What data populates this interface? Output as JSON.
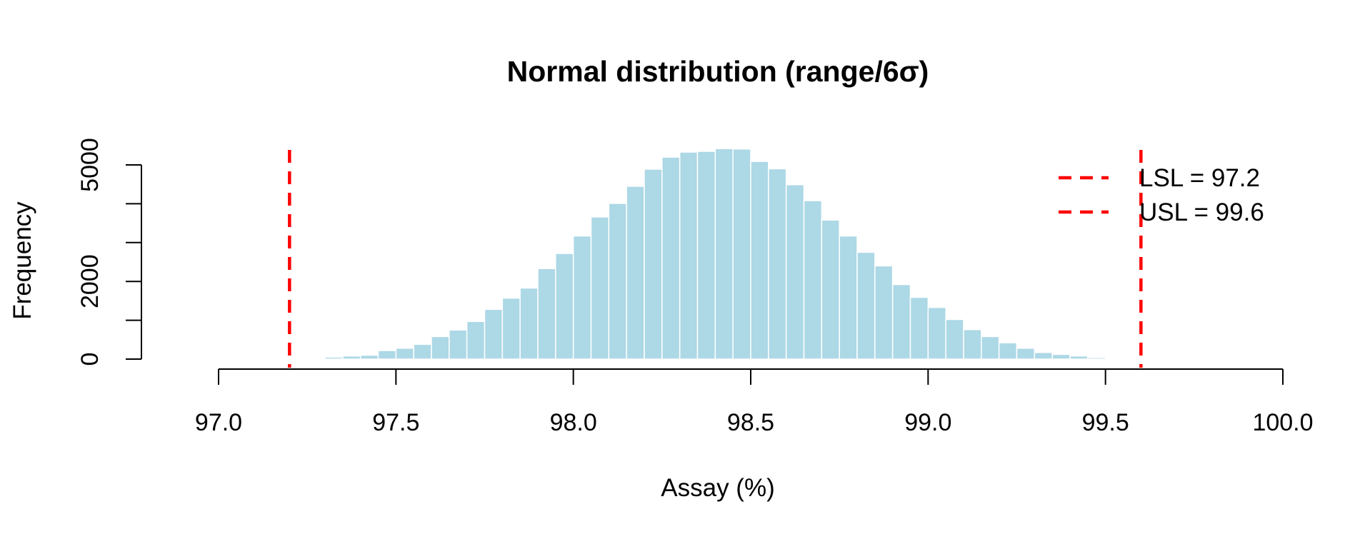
{
  "chart_data": {
    "type": "bar",
    "title": "Normal distribution (range/6σ)",
    "xlabel": "Assay (%)",
    "ylabel": "Frequency",
    "xlim": [
      97.0,
      100.0
    ],
    "ylim": [
      0,
      5500
    ],
    "x_ticks": [
      "97.0",
      "97.5",
      "98.0",
      "98.5",
      "99.0",
      "99.5",
      "100.0"
    ],
    "x_tick_values": [
      97.0,
      97.5,
      98.0,
      98.5,
      99.0,
      99.5,
      100.0
    ],
    "y_ticks": [
      "0",
      "",
      "2000",
      "",
      "",
      "5000"
    ],
    "y_tick_values": [
      0,
      1000,
      2000,
      3000,
      4000,
      5000
    ],
    "bin_width": 0.05,
    "bin_starts": [
      97.25,
      97.3,
      97.35,
      97.4,
      97.45,
      97.5,
      97.55,
      97.6,
      97.65,
      97.7,
      97.75,
      97.8,
      97.85,
      97.9,
      97.95,
      98.0,
      98.05,
      98.1,
      98.15,
      98.2,
      98.25,
      98.3,
      98.35,
      98.4,
      98.45,
      98.5,
      98.55,
      98.6,
      98.65,
      98.7,
      98.75,
      98.8,
      98.85,
      98.9,
      98.95,
      99.0,
      99.05,
      99.1,
      99.15,
      99.2,
      99.25,
      99.3,
      99.35,
      99.4,
      99.45
    ],
    "values": [
      20,
      50,
      80,
      100,
      220,
      280,
      380,
      580,
      750,
      970,
      1280,
      1570,
      1830,
      2330,
      2720,
      3170,
      3660,
      4010,
      4450,
      4890,
      5200,
      5330,
      5350,
      5420,
      5410,
      5090,
      4900,
      4490,
      4080,
      3580,
      3170,
      2750,
      2400,
      1920,
      1590,
      1330,
      1020,
      760,
      580,
      420,
      280,
      170,
      120,
      80,
      40
    ],
    "bar_color": "#add8e6",
    "bar_border_color": "#ffffff",
    "reference_lines": [
      {
        "name": "LSL = 97.2",
        "x": 97.2,
        "color": "#ff0000",
        "style": "dashed"
      },
      {
        "name": "USL = 99.6",
        "x": 99.6,
        "color": "#ff0000",
        "style": "dashed"
      }
    ],
    "legend_position": "top-right",
    "grid": false
  }
}
